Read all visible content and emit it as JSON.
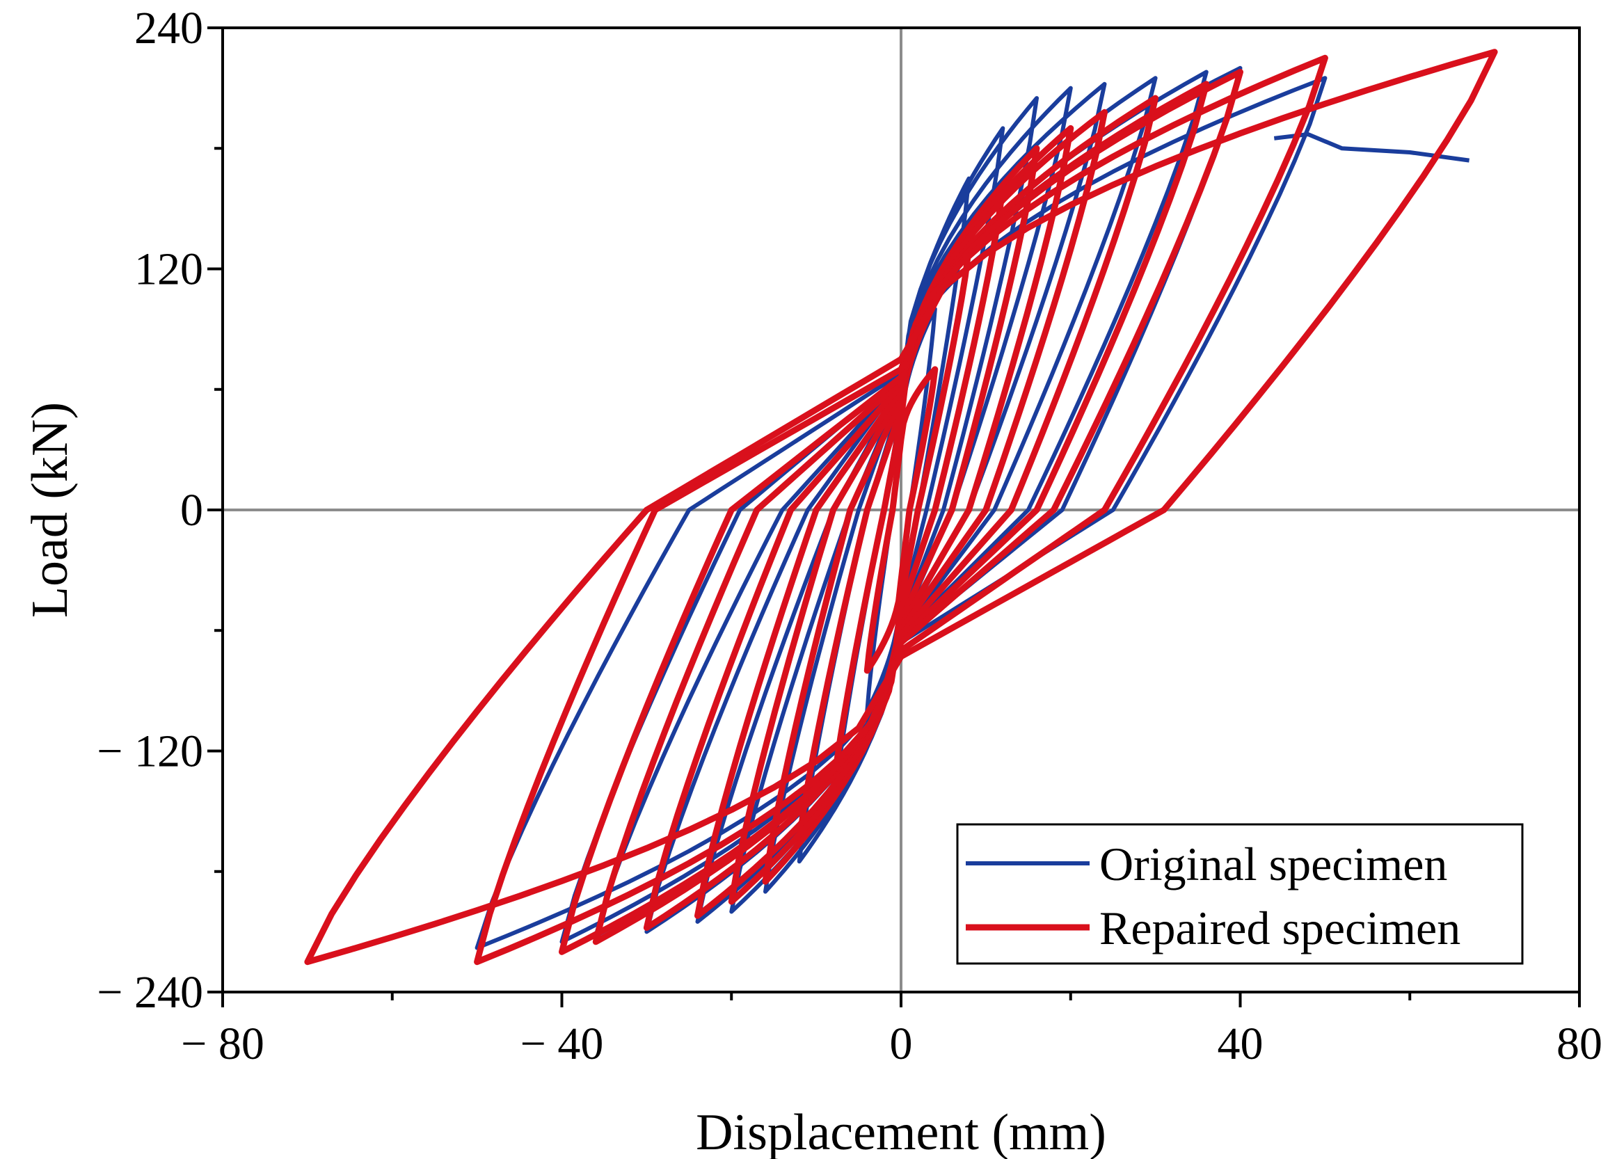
{
  "chart_data": {
    "type": "line",
    "title": "",
    "xlabel": "Displacement (mm)",
    "ylabel": "Load (kN)",
    "xlim": [
      -80,
      80
    ],
    "ylim": [
      -240,
      240
    ],
    "xticks": [
      -80,
      -40,
      0,
      40,
      80
    ],
    "xtick_labels": [
      "− 80",
      "− 40",
      "0",
      "40",
      "80"
    ],
    "yticks": [
      -240,
      -120,
      0,
      120,
      240
    ],
    "ytick_labels": [
      "− 240",
      "− 120",
      "0",
      "120",
      "240"
    ],
    "zero_lines": true,
    "legend_position": "bottom-right",
    "series": [
      {
        "name": "Original specimen",
        "color": "#1a3d9c",
        "cycles": [
          {
            "amp_pos": 4,
            "amp_neg": -4,
            "peak_pos": 100,
            "peak_neg": -100,
            "zero_pos": 1,
            "zero_neg": -1,
            "load_at_zero_pos": 40,
            "load_at_zero_neg": -40
          },
          {
            "amp_pos": 8,
            "amp_neg": -8,
            "peak_pos": 165,
            "peak_neg": -150,
            "zero_pos": 2,
            "zero_neg": -2,
            "load_at_zero_pos": 50,
            "load_at_zero_neg": -45
          },
          {
            "amp_pos": 12,
            "amp_neg": -12,
            "peak_pos": 190,
            "peak_neg": -175,
            "zero_pos": 3,
            "zero_neg": -4,
            "load_at_zero_pos": 55,
            "load_at_zero_neg": -50
          },
          {
            "amp_pos": 16,
            "amp_neg": -16,
            "peak_pos": 205,
            "peak_neg": -190,
            "zero_pos": 5,
            "zero_neg": -5,
            "load_at_zero_pos": 60,
            "load_at_zero_neg": -55
          },
          {
            "amp_pos": 20,
            "amp_neg": -20,
            "peak_pos": 210,
            "peak_neg": -200,
            "zero_pos": 6,
            "zero_neg": -6,
            "load_at_zero_pos": 60,
            "load_at_zero_neg": -58
          },
          {
            "amp_pos": 24,
            "amp_neg": -24,
            "peak_pos": 212,
            "peak_neg": -205,
            "zero_pos": 8,
            "zero_neg": -8,
            "load_at_zero_pos": 62,
            "load_at_zero_neg": -60
          },
          {
            "amp_pos": 30,
            "amp_neg": -30,
            "peak_pos": 215,
            "peak_neg": -210,
            "zero_pos": 11,
            "zero_neg": -11,
            "load_at_zero_pos": 64,
            "load_at_zero_neg": -62
          },
          {
            "amp_pos": 36,
            "amp_neg": -36,
            "peak_pos": 218,
            "peak_neg": -212,
            "zero_pos": 15,
            "zero_neg": -14,
            "load_at_zero_pos": 65,
            "load_at_zero_neg": -63
          },
          {
            "amp_pos": 40,
            "amp_neg": -40,
            "peak_pos": 220,
            "peak_neg": -215,
            "zero_pos": 19,
            "zero_neg": -19,
            "load_at_zero_pos": 67,
            "load_at_zero_neg": -65
          },
          {
            "amp_pos": 50,
            "amp_neg": -50,
            "peak_pos": 215,
            "peak_neg": -218,
            "zero_pos": 25,
            "zero_neg": -25,
            "load_at_zero_pos": 68,
            "load_at_zero_neg": -66
          }
        ],
        "envelope_end": [
          [
            44,
            185
          ],
          [
            48,
            187
          ],
          [
            52,
            180
          ],
          [
            60,
            178
          ],
          [
            67,
            174
          ]
        ]
      },
      {
        "name": "Repaired specimen",
        "color": "#d9101c",
        "cycles": [
          {
            "amp_pos": 4,
            "amp_neg": -4,
            "peak_pos": 70,
            "peak_neg": -80,
            "zero_pos": 1,
            "zero_neg": -1,
            "load_at_zero_pos": 35,
            "load_at_zero_neg": -35
          },
          {
            "amp_pos": 8,
            "amp_neg": -8,
            "peak_pos": 130,
            "peak_neg": -140,
            "zero_pos": 2,
            "zero_neg": -2,
            "load_at_zero_pos": 45,
            "load_at_zero_neg": -45
          },
          {
            "amp_pos": 12,
            "amp_neg": -12,
            "peak_pos": 160,
            "peak_neg": -165,
            "zero_pos": 4,
            "zero_neg": -4,
            "load_at_zero_pos": 50,
            "load_at_zero_neg": -50
          },
          {
            "amp_pos": 16,
            "amp_neg": -16,
            "peak_pos": 180,
            "peak_neg": -185,
            "zero_pos": 6,
            "zero_neg": -6,
            "load_at_zero_pos": 55,
            "load_at_zero_neg": -55
          },
          {
            "amp_pos": 20,
            "amp_neg": -20,
            "peak_pos": 190,
            "peak_neg": -195,
            "zero_pos": 8,
            "zero_neg": -8,
            "load_at_zero_pos": 58,
            "load_at_zero_neg": -58
          },
          {
            "amp_pos": 24,
            "amp_neg": -24,
            "peak_pos": 198,
            "peak_neg": -202,
            "zero_pos": 10,
            "zero_neg": -10,
            "load_at_zero_pos": 60,
            "load_at_zero_neg": -60
          },
          {
            "amp_pos": 30,
            "amp_neg": -30,
            "peak_pos": 205,
            "peak_neg": -208,
            "zero_pos": 13,
            "zero_neg": -13,
            "load_at_zero_pos": 62,
            "load_at_zero_neg": -62
          },
          {
            "amp_pos": 36,
            "amp_neg": -36,
            "peak_pos": 212,
            "peak_neg": -215,
            "zero_pos": 16,
            "zero_neg": -17,
            "load_at_zero_pos": 64,
            "load_at_zero_neg": -64
          },
          {
            "amp_pos": 40,
            "amp_neg": -40,
            "peak_pos": 218,
            "peak_neg": -220,
            "zero_pos": 18,
            "zero_neg": -20,
            "load_at_zero_pos": 66,
            "load_at_zero_neg": -66
          },
          {
            "amp_pos": 50,
            "amp_neg": -50,
            "peak_pos": 225,
            "peak_neg": -225,
            "zero_pos": 24,
            "zero_neg": -29,
            "load_at_zero_pos": 70,
            "load_at_zero_neg": -70
          },
          {
            "amp_pos": 70,
            "amp_neg": -70,
            "peak_pos": 228,
            "peak_neg": -225,
            "zero_pos": 31,
            "zero_neg": -30,
            "load_at_zero_pos": 75,
            "load_at_zero_neg": -73
          }
        ]
      }
    ]
  }
}
